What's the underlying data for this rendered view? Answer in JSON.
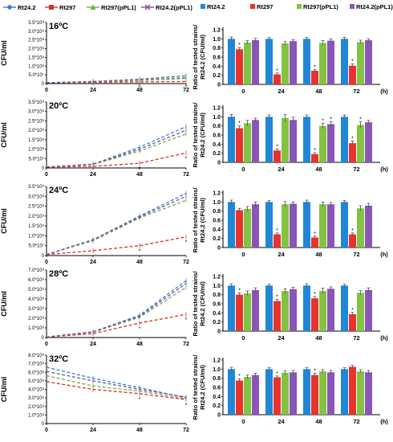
{
  "legend_left": {
    "items": [
      {
        "label": "Rt24.2",
        "color": "#2f7fd0",
        "marker": "diamond"
      },
      {
        "label": "Rt297",
        "color": "#d93025",
        "marker": "square"
      },
      {
        "label": "Rt297(pPL1)",
        "color": "#74b13c",
        "marker": "triangle"
      },
      {
        "label": "Rt24.2(pPL1)",
        "color": "#7a4fa3",
        "marker": "x"
      }
    ]
  },
  "legend_right": {
    "items": [
      {
        "label": "Rt24.2",
        "color": "#1f87d6"
      },
      {
        "label": "Rt297",
        "color": "#e8322b"
      },
      {
        "label": "Rt297(pPL1)",
        "color": "#82c341"
      },
      {
        "label": "Rt24.2(pPL1)",
        "color": "#8a55b5"
      }
    ]
  },
  "star": "*",
  "chart_data": [
    {
      "type": "line",
      "panel": "16ºC",
      "ylabel": "CFU/ml",
      "x": [
        0,
        24,
        48,
        72
      ],
      "xticks": [
        "0",
        "24",
        "48",
        "72"
      ],
      "yticks": [
        "0",
        "5.0*10⁷",
        "1.0*10⁸",
        "1.5*10⁸",
        "2.0*10⁸",
        "2.5*10⁸",
        "3.0*10⁸",
        "3.5*10⁸"
      ],
      "ylim": [
        0,
        350000000
      ],
      "series": [
        {
          "name": "Rt24.2",
          "values": [
            5000000,
            10000000,
            18000000,
            30000000
          ]
        },
        {
          "name": "Rt297",
          "values": [
            5000000,
            7000000,
            9000000,
            12000000
          ]
        },
        {
          "name": "Rt297(pPL1)",
          "values": [
            5000000,
            10000000,
            20000000,
            35000000
          ]
        },
        {
          "name": "Rt24.2(pPL1)",
          "values": [
            5000000,
            12000000,
            25000000,
            45000000
          ]
        }
      ]
    },
    {
      "type": "line",
      "panel": "20ºC",
      "ylabel": "CFU/ml",
      "x": [
        0,
        24,
        48,
        72
      ],
      "xticks": [
        "0",
        "24",
        "48",
        "72"
      ],
      "yticks": [
        "0",
        "5.0*10⁷",
        "1.0*10⁸",
        "1.5*10⁸",
        "2.0*10⁸",
        "2.5*10⁸",
        "3.0*10⁸",
        "3.5*10⁸"
      ],
      "ylim": [
        0,
        350000000
      ],
      "series": [
        {
          "name": "Rt24.2",
          "values": [
            5000000,
            20000000,
            110000000,
            220000000
          ]
        },
        {
          "name": "Rt297",
          "values": [
            5000000,
            8000000,
            25000000,
            80000000
          ]
        },
        {
          "name": "Rt297(pPL1)",
          "values": [
            5000000,
            18000000,
            90000000,
            180000000
          ]
        },
        {
          "name": "Rt24.2(pPL1)",
          "values": [
            5000000,
            20000000,
            100000000,
            200000000
          ]
        }
      ]
    },
    {
      "type": "line",
      "panel": "24ºC",
      "ylabel": "CFU/ml",
      "x": [
        0,
        24,
        48,
        72
      ],
      "xticks": [
        "0",
        "24",
        "48",
        "72"
      ],
      "yticks": [
        "0",
        "5.0*10⁷",
        "1.0*10⁸",
        "1.5*10⁸",
        "2.0*10⁸",
        "2.5*10⁸",
        "3.0*10⁸",
        "3.5*10⁸"
      ],
      "ylim": [
        0,
        350000000
      ],
      "series": [
        {
          "name": "Rt24.2",
          "values": [
            5000000,
            80000000,
            200000000,
            315000000
          ]
        },
        {
          "name": "Rt297",
          "values": [
            5000000,
            25000000,
            50000000,
            95000000
          ]
        },
        {
          "name": "Rt297(pPL1)",
          "values": [
            5000000,
            75000000,
            190000000,
            280000000
          ]
        },
        {
          "name": "Rt24.2(pPL1)",
          "values": [
            5000000,
            80000000,
            195000000,
            300000000
          ]
        }
      ]
    },
    {
      "type": "line",
      "panel": "28ºC",
      "ylabel": "CFU/ml",
      "x": [
        0,
        24,
        48,
        72
      ],
      "xticks": [
        "0",
        "24",
        "48",
        "72"
      ],
      "yticks": [
        "0",
        "1.0*10⁸",
        "2.0*10⁸",
        "3.0*10⁸",
        "4.0*10⁸",
        "5.0*10⁸",
        "6.0*10⁸",
        "7.0*10⁸"
      ],
      "ylim": [
        0,
        700000000
      ],
      "series": [
        {
          "name": "Rt24.2",
          "values": [
            5000000,
            60000000,
            230000000,
            590000000
          ]
        },
        {
          "name": "Rt297",
          "values": [
            5000000,
            40000000,
            150000000,
            240000000
          ]
        },
        {
          "name": "Rt297(pPL1)",
          "values": [
            5000000,
            55000000,
            210000000,
            520000000
          ]
        },
        {
          "name": "Rt24.2(pPL1)",
          "values": [
            5000000,
            58000000,
            220000000,
            560000000
          ]
        }
      ]
    },
    {
      "type": "line",
      "panel": "32ºC",
      "ylabel": "CFU/ml",
      "x": [
        0,
        24,
        48,
        72
      ],
      "xticks": [
        "0",
        "24",
        "48",
        "72"
      ],
      "yticks": [
        "0",
        "1.0*10⁸",
        "2.0*10⁸",
        "3.0*10⁸",
        "4.0*10⁸",
        "5.0*10⁸",
        "6.0*10⁸",
        "7.0*10⁸",
        "8.0*10⁸"
      ],
      "ylim": [
        0,
        800000000
      ],
      "series": [
        {
          "name": "Rt24.2",
          "values": [
            660000000,
            530000000,
            420000000,
            300000000
          ]
        },
        {
          "name": "Rt297",
          "values": [
            490000000,
            400000000,
            350000000,
            280000000
          ]
        },
        {
          "name": "Rt297(pPL1)",
          "values": [
            560000000,
            440000000,
            380000000,
            290000000
          ]
        },
        {
          "name": "Rt24.2(pPL1)",
          "values": [
            610000000,
            500000000,
            400000000,
            310000000
          ]
        }
      ]
    },
    {
      "type": "bar",
      "ylabel": "Ratio of  tested strains/ Rt24.2 (CFU/ml)",
      "categories": [
        "0",
        "24",
        "48",
        "72"
      ],
      "xunit": "(h)",
      "yticks": [
        "0",
        "0.2",
        "0.4",
        "0.6",
        "0.8",
        "1.0",
        "1.2"
      ],
      "ylim": [
        0,
        1.2
      ],
      "series": [
        {
          "name": "Rt24.2",
          "values": [
            1,
            1,
            1,
            1
          ],
          "err": [
            0.04,
            0.03,
            0.03,
            0.03
          ]
        },
        {
          "name": "Rt297",
          "values": [
            0.77,
            0.22,
            0.3,
            0.41
          ],
          "err": [
            0.04,
            0.03,
            0.03,
            0.04
          ]
        },
        {
          "name": "Rt297(pPL1)",
          "values": [
            0.92,
            0.9,
            0.91,
            0.93
          ],
          "err": [
            0.04,
            0.04,
            0.05,
            0.04
          ]
        },
        {
          "name": "Rt24.2(pPL1)",
          "values": [
            0.97,
            0.95,
            0.96,
            0.97
          ],
          "err": [
            0.04,
            0.03,
            0.04,
            0.03
          ]
        }
      ],
      "stars": [
        [
          1,
          0
        ],
        [
          1,
          1
        ],
        [
          1,
          2
        ],
        [
          1,
          3
        ]
      ]
    },
    {
      "type": "bar",
      "ylabel": "Ratio of  tested strains/ Rt24.2 (CFU/ml)",
      "categories": [
        "0",
        "24",
        "48",
        "72"
      ],
      "xunit": "(h)",
      "yticks": [
        "0",
        "0.2",
        "0.4",
        "0.6",
        "0.8",
        "1.0",
        "1.2"
      ],
      "ylim": [
        0,
        1.2
      ],
      "series": [
        {
          "name": "Rt24.2",
          "values": [
            1,
            1,
            1,
            1
          ],
          "err": [
            0.05,
            0.04,
            0.04,
            0.04
          ]
        },
        {
          "name": "Rt297",
          "values": [
            0.75,
            0.26,
            0.18,
            0.42
          ],
          "err": [
            0.05,
            0.03,
            0.03,
            0.05
          ]
        },
        {
          "name": "Rt297(pPL1)",
          "values": [
            0.86,
            0.97,
            0.8,
            0.82
          ],
          "err": [
            0.06,
            0.08,
            0.06,
            0.07
          ]
        },
        {
          "name": "Rt24.2(pPL1)",
          "values": [
            0.93,
            0.93,
            0.84,
            0.88
          ],
          "err": [
            0.04,
            0.06,
            0.05,
            0.04
          ]
        }
      ],
      "stars": [
        [
          1,
          0
        ],
        [
          1,
          1
        ],
        [
          1,
          2
        ],
        [
          1,
          3
        ],
        [
          2,
          2
        ],
        [
          3,
          2
        ],
        [
          2,
          3
        ]
      ]
    },
    {
      "type": "bar",
      "ylabel": "Ratio of  tested strains/ Rt24.2 (CFU/ml)",
      "categories": [
        "0",
        "24",
        "48",
        "72"
      ],
      "xunit": "(h)",
      "yticks": [
        "0",
        "0.2",
        "0.4",
        "0.6",
        "0.8",
        "1.0",
        "1.2"
      ],
      "ylim": [
        0,
        1.2
      ],
      "series": [
        {
          "name": "Rt24.2",
          "values": [
            1,
            1,
            1,
            1
          ],
          "err": [
            0.04,
            0.03,
            0.04,
            0.03
          ]
        },
        {
          "name": "Rt297",
          "values": [
            0.82,
            0.29,
            0.22,
            0.29
          ],
          "err": [
            0.04,
            0.03,
            0.03,
            0.03
          ]
        },
        {
          "name": "Rt297(pPL1)",
          "values": [
            0.85,
            0.95,
            0.95,
            0.86
          ],
          "err": [
            0.05,
            0.06,
            0.05,
            0.06
          ]
        },
        {
          "name": "Rt24.2(pPL1)",
          "values": [
            0.95,
            0.96,
            0.95,
            0.92
          ],
          "err": [
            0.05,
            0.04,
            0.04,
            0.05
          ]
        }
      ],
      "stars": [
        [
          1,
          1
        ],
        [
          1,
          2
        ],
        [
          1,
          3
        ]
      ]
    },
    {
      "type": "bar",
      "ylabel": "Ratio of  tested strains/ Rt24.2 (CFU/ml)",
      "categories": [
        "0",
        "24",
        "48",
        "72"
      ],
      "xunit": "(h)",
      "yticks": [
        "0",
        "0.2",
        "0.4",
        "0.6",
        "0.8",
        "1.0",
        "1.2"
      ],
      "ylim": [
        0,
        1.2
      ],
      "series": [
        {
          "name": "Rt24.2",
          "values": [
            1,
            1,
            1,
            1
          ],
          "err": [
            0.04,
            0.03,
            0.04,
            0.03
          ]
        },
        {
          "name": "Rt297",
          "values": [
            0.8,
            0.66,
            0.72,
            0.37
          ],
          "err": [
            0.04,
            0.04,
            0.04,
            0.04
          ]
        },
        {
          "name": "Rt297(pPL1)",
          "values": [
            0.83,
            0.88,
            0.88,
            0.84
          ],
          "err": [
            0.05,
            0.05,
            0.06,
            0.05
          ]
        },
        {
          "name": "Rt24.2(pPL1)",
          "values": [
            0.9,
            0.92,
            0.93,
            0.9
          ],
          "err": [
            0.05,
            0.04,
            0.04,
            0.05
          ]
        }
      ],
      "stars": [
        [
          1,
          0
        ],
        [
          1,
          1
        ],
        [
          1,
          2
        ],
        [
          1,
          3
        ]
      ]
    },
    {
      "type": "bar",
      "ylabel": "Ratio of  tested strains/ Rt24.2 (CFU/ml)",
      "categories": [
        "0",
        "24",
        "48",
        "72"
      ],
      "xunit": "(h)",
      "yticks": [
        "0",
        "0.2",
        "0.4",
        "0.6",
        "0.8",
        "1.0",
        "1.2"
      ],
      "ylim": [
        0,
        1.2
      ],
      "series": [
        {
          "name": "Rt24.2",
          "values": [
            1,
            1,
            1,
            1
          ],
          "err": [
            0.04,
            0.03,
            0.03,
            0.03
          ]
        },
        {
          "name": "Rt297",
          "values": [
            0.75,
            0.82,
            0.87,
            1.05
          ],
          "err": [
            0.04,
            0.03,
            0.04,
            0.03
          ]
        },
        {
          "name": "Rt297(pPL1)",
          "values": [
            0.83,
            0.92,
            0.95,
            0.95
          ],
          "err": [
            0.04,
            0.04,
            0.04,
            0.04
          ]
        },
        {
          "name": "Rt24.2(pPL1)",
          "values": [
            0.87,
            0.93,
            0.93,
            0.93
          ],
          "err": [
            0.04,
            0.04,
            0.04,
            0.04
          ]
        }
      ],
      "stars": [
        [
          1,
          0
        ],
        [
          1,
          1
        ],
        [
          1,
          2
        ]
      ]
    }
  ]
}
